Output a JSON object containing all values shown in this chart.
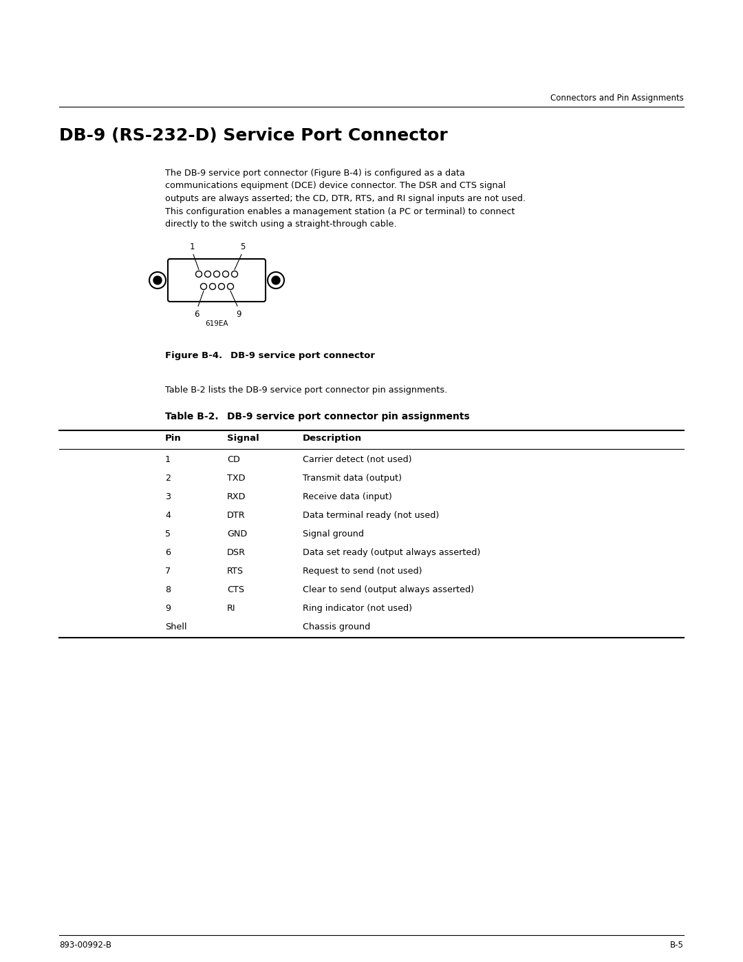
{
  "header_right": "Connectors and Pin Assignments",
  "section_title": "DB-9 (RS-232-D) Service Port Connector",
  "body_line1": "The DB-9 service port connector (Figure B-4) is configured as a data",
  "body_line2": "communications equipment (DCE) device connector. The DSR and CTS signal",
  "body_line3": "outputs are always asserted; the CD, DTR, RTS, and RI signal inputs are not used.",
  "body_line4": "This configuration enables a management station (a PC or terminal) to connect",
  "body_line5": "directly to the switch using a straight-through cable.",
  "figure_image_label": "619EA",
  "figure_label": "Figure B-4.",
  "figure_caption": "DB-9 service port connector",
  "pre_table_text": "Table B-2 lists the DB-9 service port connector pin assignments.",
  "table_title_bold": "Table B-2.",
  "table_title_rest": "DB-9 service port connector pin assignments",
  "col_headers": [
    "Pin",
    "Signal",
    "Description"
  ],
  "table_rows": [
    [
      "1",
      "CD",
      "Carrier detect (not used)"
    ],
    [
      "2",
      "TXD",
      "Transmit data (output)"
    ],
    [
      "3",
      "RXD",
      "Receive data (input)"
    ],
    [
      "4",
      "DTR",
      "Data terminal ready (not used)"
    ],
    [
      "5",
      "GND",
      "Signal ground"
    ],
    [
      "6",
      "DSR",
      "Data set ready (output always asserted)"
    ],
    [
      "7",
      "RTS",
      "Request to send (not used)"
    ],
    [
      "8",
      "CTS",
      "Clear to send (output always asserted)"
    ],
    [
      "9",
      "RI",
      "Ring indicator (not used)"
    ],
    [
      "Shell",
      "",
      "Chassis ground"
    ]
  ],
  "footer_left": "893-00992-B",
  "footer_right": "B-5",
  "bg_color": "#ffffff",
  "text_color": "#000000"
}
